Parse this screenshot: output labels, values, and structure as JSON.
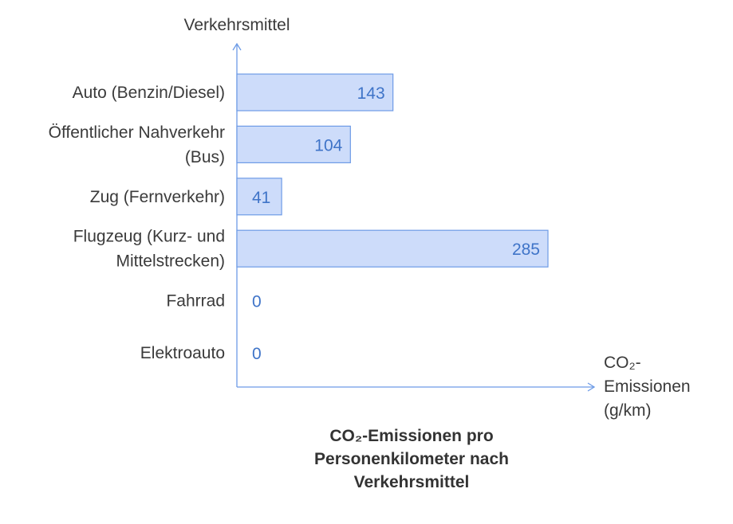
{
  "chart_data": {
    "type": "bar",
    "orientation": "horizontal",
    "title_lines": [
      "CO₂-Emissionen pro",
      "Personenkilometer nach",
      "Verkehrsmittel"
    ],
    "ylabel": "Verkehrsmittel",
    "xlabel_lines": [
      "CO₂-",
      "Emissionen",
      "(g/km)"
    ],
    "categories": [
      [
        "Auto (Benzin/Diesel)"
      ],
      [
        "Öffentlicher Nahverkehr",
        "(Bus)"
      ],
      [
        "Zug (Fernverkehr)"
      ],
      [
        "Flugzeug (Kurz- und",
        "Mittelstrecken)"
      ],
      [
        "Fahrrad"
      ],
      [
        "Elektroauto"
      ]
    ],
    "values": [
      143,
      104,
      41,
      285,
      0,
      0
    ],
    "xlim": [
      0,
      330
    ],
    "grid": false,
    "colors": {
      "bar_fill": "#cddcfa",
      "bar_stroke": "#6d9be6",
      "axis": "#6d9be6",
      "value_text": "#3f74c8",
      "label_text": "#3a3a3a",
      "title_text": "#333333"
    }
  }
}
